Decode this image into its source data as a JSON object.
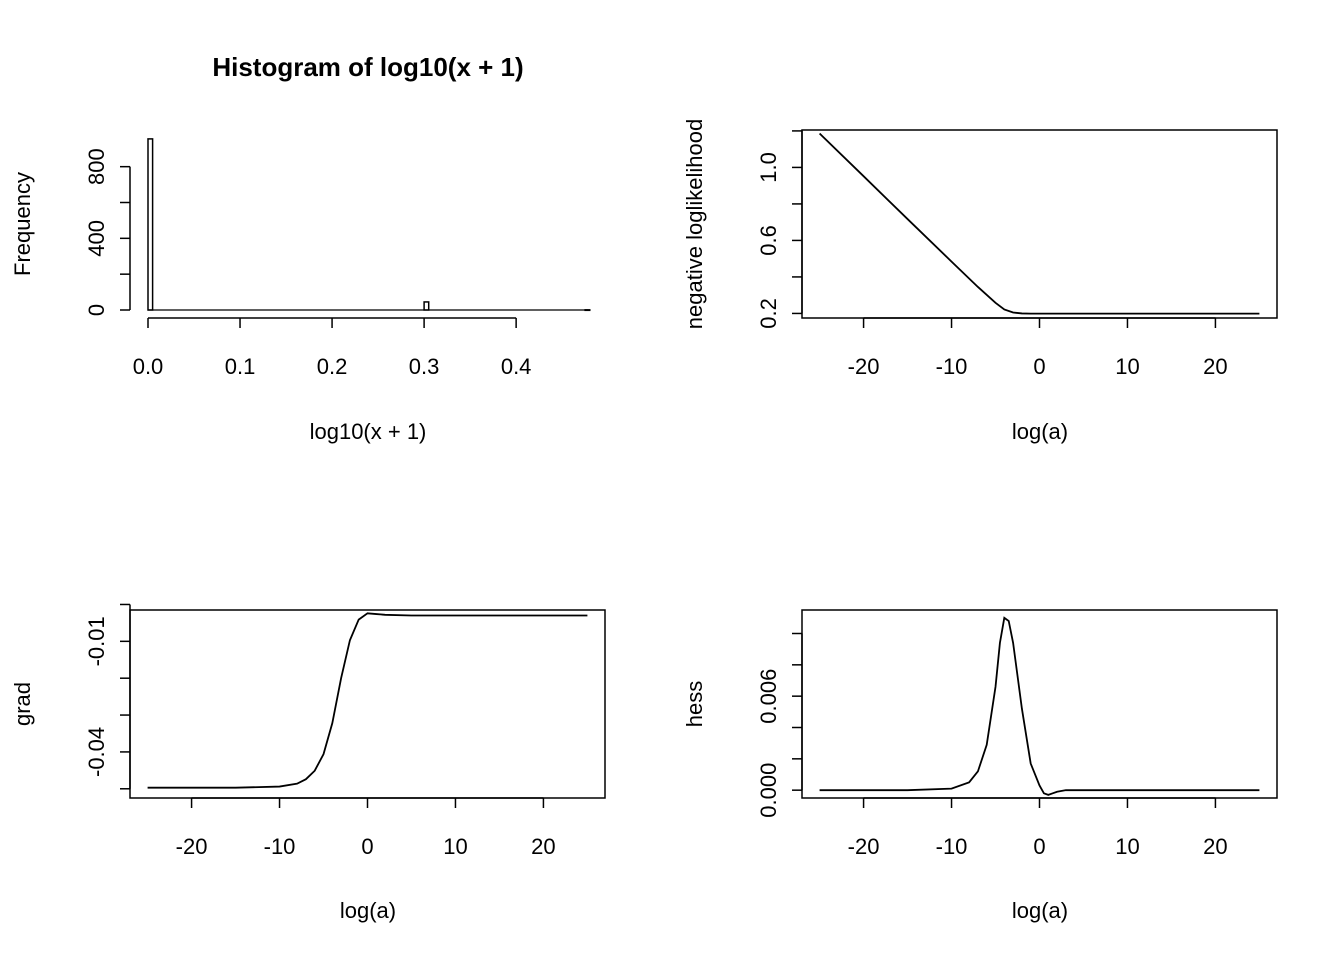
{
  "chart_data": [
    {
      "type": "bar",
      "title": "Histogram of log10(x + 1)",
      "xlabel": "log10(x + 1)",
      "ylabel": "Frequency",
      "xlim": [
        0,
        0.477
      ],
      "ylim": [
        0,
        960
      ],
      "x_ticks": [
        0.0,
        0.1,
        0.2,
        0.3,
        0.4
      ],
      "x_tick_labels": [
        "0.0",
        "0.1",
        "0.2",
        "0.3",
        "0.4"
      ],
      "y_ticks": [
        0,
        200,
        400,
        600,
        800
      ],
      "y_tick_labels": [
        "0",
        "",
        "400",
        "",
        "800"
      ],
      "bins": [
        {
          "x0": 0.0,
          "x1": 0.005,
          "count": 955
        },
        {
          "x0": 0.3,
          "x1": 0.305,
          "count": 45
        },
        {
          "x0": 0.475,
          "x1": 0.48,
          "count": 1
        }
      ]
    },
    {
      "type": "line",
      "title": "",
      "xlabel": "log(a)",
      "ylabel": "negative loglikelihood",
      "xlim": [
        -27,
        27
      ],
      "ylim": [
        0.175,
        1.205
      ],
      "x_ticks": [
        -20,
        -10,
        0,
        10,
        20
      ],
      "x_tick_labels": [
        "-20",
        "-10",
        "0",
        "10",
        "20"
      ],
      "y_ticks": [
        0.2,
        0.4,
        0.6,
        0.8,
        1.0,
        1.2
      ],
      "y_tick_labels": [
        "0.2",
        "",
        "0.6",
        "",
        "1.0",
        ""
      ],
      "x": [
        -25,
        -20,
        -15,
        -10,
        -7,
        -5,
        -4,
        -3,
        -2,
        -1,
        0,
        5,
        10,
        15,
        20,
        25
      ],
      "y": [
        1.186,
        0.952,
        0.717,
        0.484,
        0.345,
        0.258,
        0.222,
        0.205,
        0.2,
        0.199,
        0.199,
        0.199,
        0.199,
        0.199,
        0.199,
        0.199
      ]
    },
    {
      "type": "line",
      "title": "",
      "xlabel": "log(a)",
      "ylabel": "grad",
      "xlim": [
        -27,
        27
      ],
      "ylim": [
        -0.0525,
        -0.0015
      ],
      "x_ticks": [
        -20,
        -10,
        0,
        10,
        20
      ],
      "x_tick_labels": [
        "-20",
        "-10",
        "0",
        "10",
        "20"
      ],
      "y_ticks": [
        -0.05,
        -0.04,
        -0.03,
        -0.02,
        -0.01,
        0.0
      ],
      "y_tick_labels": [
        "",
        "-0.04",
        "",
        "",
        "-0.01",
        ""
      ],
      "x": [
        -25,
        -15,
        -10,
        -8,
        -7,
        -6,
        -5,
        -4,
        -3,
        -2,
        -1,
        0,
        1,
        2,
        5,
        10,
        15,
        20,
        25
      ],
      "y": [
        -0.0497,
        -0.0497,
        -0.0494,
        -0.0486,
        -0.0474,
        -0.0451,
        -0.0406,
        -0.0322,
        -0.02,
        -0.0097,
        -0.0041,
        -0.0024,
        -0.0026,
        -0.0028,
        -0.003,
        -0.003,
        -0.003,
        -0.003,
        -0.003
      ]
    },
    {
      "type": "line",
      "title": "",
      "xlabel": "log(a)",
      "ylabel": "hess",
      "xlim": [
        -27,
        27
      ],
      "ylim": [
        -0.0005,
        0.0115
      ],
      "x_ticks": [
        -20,
        -10,
        0,
        10,
        20
      ],
      "x_tick_labels": [
        "-20",
        "-10",
        "0",
        "10",
        "20"
      ],
      "y_ticks": [
        0.0,
        0.002,
        0.004,
        0.006,
        0.008,
        0.01
      ],
      "y_tick_labels": [
        "0.000",
        "",
        "",
        "0.006",
        "",
        ""
      ],
      "x": [
        -25,
        -15,
        -10,
        -8,
        -7,
        -6,
        -5,
        -4.5,
        -4,
        -3.5,
        -3,
        -2,
        -1,
        0,
        0.5,
        1,
        1.5,
        2,
        3,
        5,
        10,
        15,
        20,
        25
      ],
      "y": [
        0.0,
        0.0,
        0.0001,
        0.0005,
        0.0012,
        0.0029,
        0.0066,
        0.0094,
        0.011,
        0.0108,
        0.0094,
        0.0052,
        0.0017,
        0.0003,
        -0.0002,
        -0.0003,
        -0.0002,
        -0.0001,
        0.0,
        0.0,
        0.0,
        0.0,
        0.0,
        0.0
      ]
    }
  ]
}
